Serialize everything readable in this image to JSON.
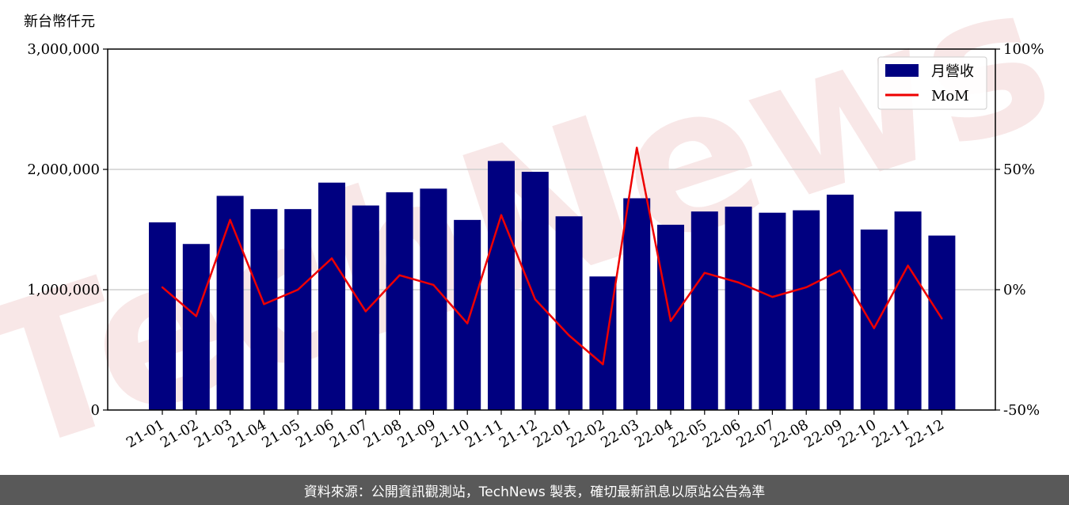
{
  "chart_data": {
    "type": "bar",
    "unit_label": "新台幣仟元",
    "categories": [
      "21-01",
      "21-02",
      "21-03",
      "21-04",
      "21-05",
      "21-06",
      "21-07",
      "21-08",
      "21-09",
      "21-10",
      "21-11",
      "21-12",
      "22-01",
      "22-02",
      "22-03",
      "22-04",
      "22-05",
      "22-06",
      "22-07",
      "22-08",
      "22-09",
      "22-10",
      "22-11",
      "22-12"
    ],
    "series": [
      {
        "name": "月營收",
        "axis": "left",
        "color": "#000080",
        "values": [
          1560000,
          1380000,
          1780000,
          1670000,
          1670000,
          1890000,
          1700000,
          1810000,
          1840000,
          1580000,
          2070000,
          1980000,
          1610000,
          1110000,
          1760000,
          1540000,
          1650000,
          1690000,
          1640000,
          1660000,
          1790000,
          1500000,
          1650000,
          1450000
        ]
      },
      {
        "name": "MoM",
        "axis": "right",
        "type": "line",
        "color": "#ee0000",
        "values": [
          1,
          -11,
          29,
          -6,
          0,
          13,
          -9,
          6,
          2,
          -14,
          31,
          -4,
          -19,
          -31,
          59,
          -13,
          7,
          3,
          -3,
          1,
          8,
          -16,
          10,
          -12
        ]
      }
    ],
    "y_left": {
      "min": 0,
      "max": 3000000,
      "ticks": [
        0,
        1000000,
        2000000,
        3000000
      ],
      "tick_labels": [
        "0",
        "1,000,000",
        "2,000,000",
        "3,000,000"
      ]
    },
    "y_right": {
      "min": -50,
      "max": 100,
      "ticks": [
        -50,
        0,
        50,
        100
      ],
      "tick_labels": [
        "-50%",
        "0%",
        "50%",
        "100%"
      ]
    },
    "grid": true,
    "legend": "top-right"
  },
  "footer": {
    "source_text": "資料來源：公開資訊觀測站，TechNews 製表，確切最新訊息以原站公告為準"
  },
  "watermark": {
    "text": "TechNews",
    "color": "#f3d4d4"
  }
}
